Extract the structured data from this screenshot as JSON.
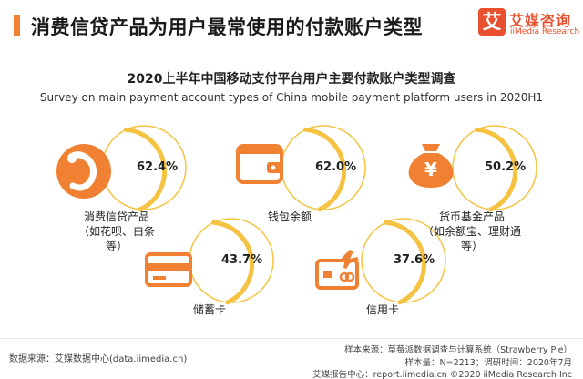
{
  "header": {
    "title": "消费信贷产品为用户最常使用的付款账户类型",
    "accent_color": "#f08132",
    "logo": {
      "mark": "艾",
      "name_cn": "艾媒咨询",
      "name_en": "iiMedia Research",
      "color": "#e8502f"
    }
  },
  "chart_data": {
    "type": "bubble-infographic",
    "title": "2020上半年中国移动支付平台用户主要付款账户类型调查",
    "subtitle": "Survey on main payment account types of China mobile payment platform users in 2020H1",
    "unit": "%",
    "categories": [
      {
        "name": "消费信贷产品",
        "detail": [
          "（如花呗、白条",
          "等）"
        ],
        "value": 62.4,
        "value_label": "62.4%",
        "icon": "credit-product-icon"
      },
      {
        "name": "钱包余额",
        "detail": [],
        "value": 62.0,
        "value_label": "62.0%",
        "icon": "wallet-icon"
      },
      {
        "name": "货币基金产品",
        "detail": [
          "（如余额宝、理财通",
          "等）"
        ],
        "value": 50.2,
        "value_label": "50.2%",
        "icon": "money-bag-icon"
      },
      {
        "name": "储蓄卡",
        "detail": [],
        "value": 43.7,
        "value_label": "43.7%",
        "icon": "debit-card-icon"
      },
      {
        "name": "信用卡",
        "detail": [],
        "value": 37.6,
        "value_label": "37.6%",
        "icon": "credit-card-icon"
      }
    ],
    "colors": {
      "icon": "#f08132",
      "ring": "#f5c341"
    }
  },
  "footer": {
    "source": "数据来源：艾媒数据中心(data.iimedia.cn)",
    "notes": [
      "样本来源：草莓派数据调查与计算系统（Strawberry Pie）",
      "样本量：N=2213；调研时间：2020年7月",
      "艾媒报告中心：report.iimedia.cn    ©2020  iiMedia Research  Inc"
    ]
  }
}
